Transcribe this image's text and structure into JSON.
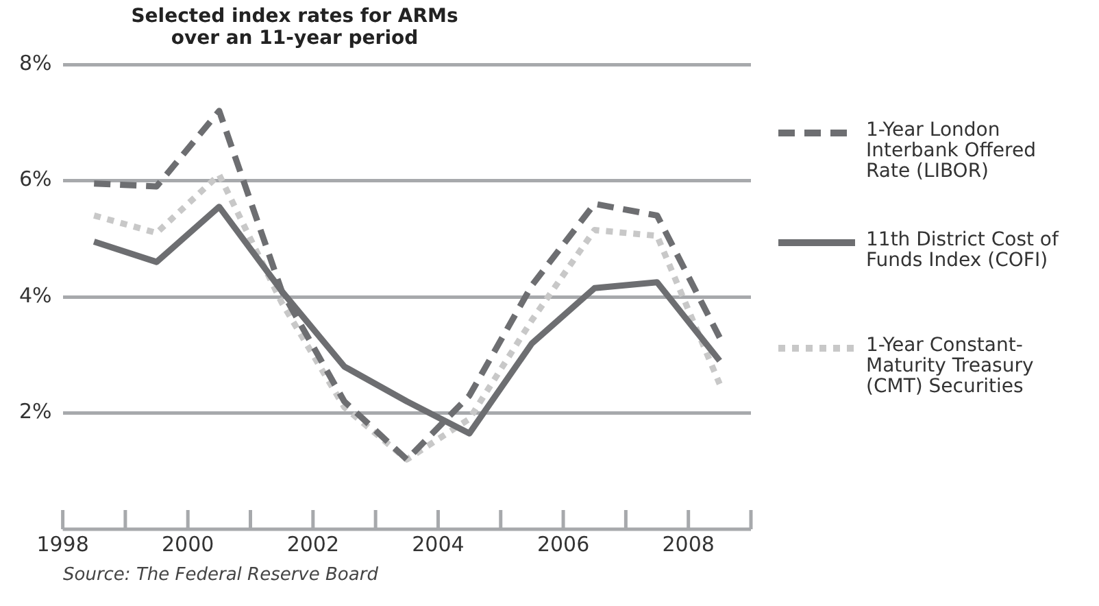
{
  "chart_data": {
    "type": "line",
    "title": "Selected index rates for ARMs over an 11-year period",
    "x": [
      1998.5,
      1999.5,
      2000.5,
      2001.5,
      2002.5,
      2003.5,
      2004.5,
      2005.5,
      2006.5,
      2007.5,
      2008.5
    ],
    "series": [
      {
        "name": "1-Year London Interbank Offered Rate (LIBOR)",
        "color": "#6d6e71",
        "line_style": "dashed",
        "values": [
          5.95,
          5.9,
          7.2,
          4.1,
          2.2,
          1.2,
          2.3,
          4.2,
          5.6,
          5.4,
          3.3
        ]
      },
      {
        "name": "11th District Cost of Funds Index (COFI)",
        "color": "#6d6e71",
        "line_style": "solid",
        "values": [
          4.95,
          4.6,
          5.55,
          4.1,
          2.8,
          2.2,
          1.65,
          3.2,
          4.15,
          4.25,
          2.9
        ]
      },
      {
        "name": "1-Year Constant-Maturity Treasury (CMT) Securities",
        "color": "#c8c8c8",
        "line_style": "dotted",
        "values": [
          5.4,
          5.1,
          6.1,
          3.9,
          2.1,
          1.2,
          1.9,
          3.6,
          5.15,
          5.05,
          2.5
        ]
      }
    ],
    "xlim": [
      1998,
      2009
    ],
    "xticks": [
      {
        "value": 1998,
        "label": "1998"
      },
      {
        "value": 1999,
        "label": null
      },
      {
        "value": 2000,
        "label": "2000"
      },
      {
        "value": 2001,
        "label": null
      },
      {
        "value": 2002,
        "label": "2002"
      },
      {
        "value": 2003,
        "label": null
      },
      {
        "value": 2004,
        "label": "2004"
      },
      {
        "value": 2005,
        "label": null
      },
      {
        "value": 2006,
        "label": "2006"
      },
      {
        "value": 2007,
        "label": null
      },
      {
        "value": 2008,
        "label": "2008"
      },
      {
        "value": 2009,
        "label": null
      }
    ],
    "ylim": [
      0,
      8
    ],
    "yticks": [
      {
        "value": 2,
        "label": "2%"
      },
      {
        "value": 4,
        "label": "4%"
      },
      {
        "value": 6,
        "label": "6%"
      },
      {
        "value": 8,
        "label": "8%"
      }
    ],
    "grid": "y",
    "legend": "right",
    "marker": "none",
    "annotations": [
      "Source: The Federal Reserve Board"
    ]
  }
}
